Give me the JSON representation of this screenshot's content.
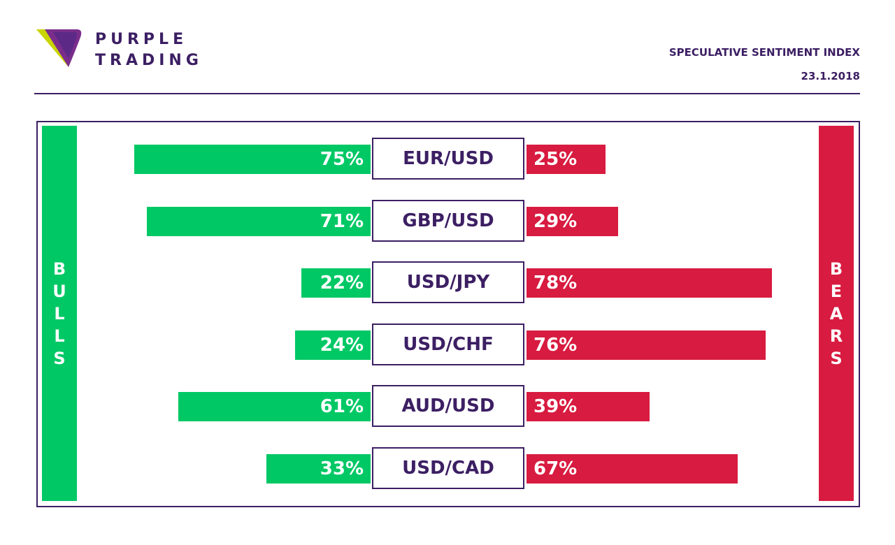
{
  "brand": {
    "line1": "PURPLE",
    "line2": "TRADING"
  },
  "header": {
    "title": "SPECULATIVE SENTIMENT INDEX",
    "date": "23.1.2018"
  },
  "side_labels": {
    "bulls": "BULLS",
    "bears": "BEARS"
  },
  "colors": {
    "bulls": "#00c865",
    "bears": "#d81b40",
    "brand": "#3c1f63"
  },
  "chart_data": {
    "type": "bar",
    "categories": [
      "EUR/USD",
      "GBP/USD",
      "USD/JPY",
      "USD/CHF",
      "AUD/USD",
      "USD/CAD"
    ],
    "series": [
      {
        "name": "BULLS",
        "values": [
          75,
          71,
          22,
          24,
          61,
          33
        ],
        "labels": [
          "75%",
          "71%",
          "22%",
          "24%",
          "61%",
          "33%"
        ]
      },
      {
        "name": "BEARS",
        "values": [
          25,
          29,
          78,
          76,
          39,
          67
        ],
        "labels": [
          "25%",
          "29%",
          "78%",
          "76%",
          "39%",
          "67%"
        ]
      }
    ],
    "ylim": [
      0,
      100
    ]
  }
}
